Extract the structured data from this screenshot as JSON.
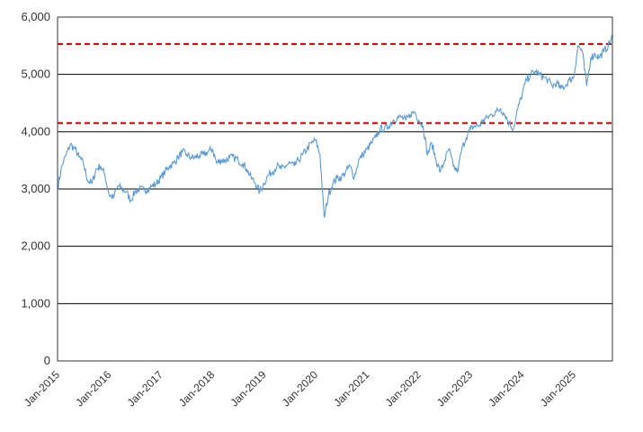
{
  "chart_data": {
    "type": "line",
    "title": "",
    "xlabel": "",
    "ylabel": "",
    "ylim": [
      0,
      6000
    ],
    "xlim": [
      "2015-01",
      "2025-10"
    ],
    "y_ticks": [
      {
        "value": 0,
        "label": "0"
      },
      {
        "value": 1000,
        "label": "1,000"
      },
      {
        "value": 2000,
        "label": "2,000"
      },
      {
        "value": 3000,
        "label": "3,000"
      },
      {
        "value": 4000,
        "label": "4,000"
      },
      {
        "value": 5000,
        "label": "5,000"
      },
      {
        "value": 6000,
        "label": "6,000"
      }
    ],
    "x_ticks": [
      {
        "value": "2015-01",
        "label": "Jan-2015"
      },
      {
        "value": "2016-01",
        "label": "Jan-2016"
      },
      {
        "value": "2017-01",
        "label": "Jan-2017"
      },
      {
        "value": "2018-01",
        "label": "Jan-2018"
      },
      {
        "value": "2019-01",
        "label": "Jan-2019"
      },
      {
        "value": "2020-01",
        "label": "Jan-2020"
      },
      {
        "value": "2021-01",
        "label": "Jan-2021"
      },
      {
        "value": "2022-01",
        "label": "Jan-2022"
      },
      {
        "value": "2023-01",
        "label": "Jan-2023"
      },
      {
        "value": "2024-01",
        "label": "Jan-2024"
      },
      {
        "value": "2025-01",
        "label": "Jan-2025"
      }
    ],
    "grid": "horizontal",
    "series_color": "#5b9bd5",
    "reference_line_color": "#c00000",
    "reference_lines": [
      5530,
      4150
    ],
    "series": [
      {
        "x": [
          "2015-01",
          "2015-02",
          "2015-03",
          "2015-04",
          "2015-05",
          "2015-06",
          "2015-07",
          "2015-08",
          "2015-09",
          "2015-10",
          "2015-11",
          "2015-12",
          "2016-01",
          "2016-02",
          "2016-03",
          "2016-04",
          "2016-05",
          "2016-06",
          "2016-07",
          "2016-08",
          "2016-09",
          "2016-10",
          "2016-11",
          "2016-12",
          "2017-01",
          "2017-02",
          "2017-03",
          "2017-04",
          "2017-05",
          "2017-06",
          "2017-07",
          "2017-08",
          "2017-09",
          "2017-10",
          "2017-11",
          "2017-12",
          "2018-01",
          "2018-02",
          "2018-03",
          "2018-04",
          "2018-05",
          "2018-06",
          "2018-07",
          "2018-08",
          "2018-09",
          "2018-10",
          "2018-11",
          "2018-12",
          "2019-01",
          "2019-02",
          "2019-03",
          "2019-04",
          "2019-05",
          "2019-06",
          "2019-07",
          "2019-08",
          "2019-09",
          "2019-10",
          "2019-11",
          "2019-12",
          "2020-01",
          "2020-02",
          "2020-03",
          "2020-04",
          "2020-05",
          "2020-06",
          "2020-07",
          "2020-08",
          "2020-09",
          "2020-10",
          "2020-11",
          "2020-12",
          "2021-01",
          "2021-02",
          "2021-03",
          "2021-04",
          "2021-05",
          "2021-06",
          "2021-07",
          "2021-08",
          "2021-09",
          "2021-10",
          "2021-11",
          "2021-12",
          "2022-01",
          "2022-02",
          "2022-03",
          "2022-04",
          "2022-05",
          "2022-06",
          "2022-07",
          "2022-08",
          "2022-09",
          "2022-10",
          "2022-11",
          "2022-12",
          "2023-01",
          "2023-02",
          "2023-03",
          "2023-04",
          "2023-05",
          "2023-06",
          "2023-07",
          "2023-08",
          "2023-09",
          "2023-10",
          "2023-11",
          "2023-12",
          "2024-01",
          "2024-02",
          "2024-03",
          "2024-04",
          "2024-05",
          "2024-06",
          "2024-07",
          "2024-08",
          "2024-09",
          "2024-10",
          "2024-11",
          "2024-12",
          "2025-01",
          "2025-02",
          "2025-03",
          "2025-04",
          "2025-05",
          "2025-06",
          "2025-07",
          "2025-08",
          "2025-09",
          "2025-10"
        ],
        "values": [
          3010,
          3400,
          3600,
          3780,
          3700,
          3560,
          3450,
          3150,
          3100,
          3350,
          3400,
          3250,
          2900,
          2850,
          3050,
          3000,
          2950,
          2800,
          2950,
          3000,
          2980,
          3000,
          3050,
          3100,
          3200,
          3300,
          3400,
          3450,
          3550,
          3650,
          3600,
          3550,
          3550,
          3580,
          3600,
          3650,
          3700,
          3450,
          3500,
          3500,
          3550,
          3550,
          3500,
          3450,
          3350,
          3200,
          3100,
          2950,
          3100,
          3250,
          3300,
          3400,
          3350,
          3400,
          3450,
          3400,
          3500,
          3600,
          3700,
          3800,
          3850,
          3600,
          2500,
          2900,
          3100,
          3200,
          3200,
          3300,
          3400,
          3200,
          3500,
          3600,
          3700,
          3800,
          3900,
          4050,
          4050,
          4100,
          4200,
          4250,
          4250,
          4200,
          4300,
          4350,
          4200,
          4100,
          3600,
          3800,
          3500,
          3300,
          3500,
          3700,
          3400,
          3300,
          3700,
          3900,
          4050,
          4100,
          4100,
          4200,
          4250,
          4300,
          4350,
          4400,
          4300,
          4150,
          4050,
          4400,
          4650,
          4900,
          5000,
          5050,
          5000,
          4950,
          4900,
          4800,
          4850,
          4750,
          4800,
          4900,
          4950,
          5500,
          5400,
          4800,
          5300,
          5350,
          5300,
          5400,
          5500,
          5650
        ]
      }
    ]
  }
}
